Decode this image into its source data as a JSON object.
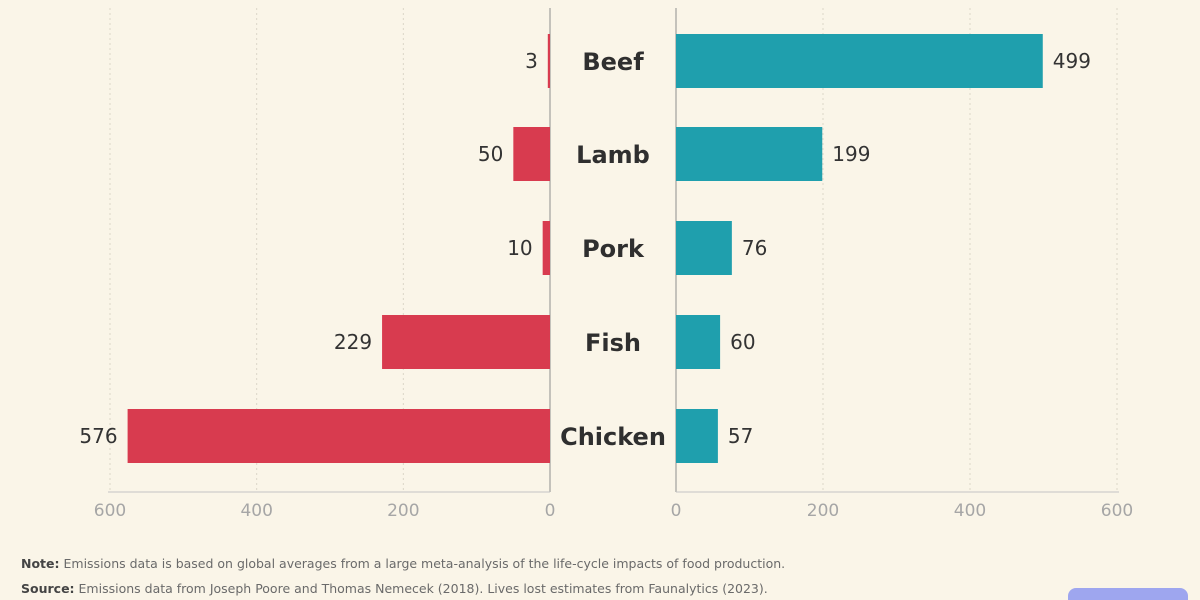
{
  "chart_data": {
    "type": "bar",
    "categories": [
      "Beef",
      "Lamb",
      "Pork",
      "Fish",
      "Chicken"
    ],
    "series": [
      {
        "values": [
          3,
          50,
          10,
          229,
          576
        ],
        "color": "#d83b4f"
      },
      {
        "values": [
          499,
          199,
          76,
          60,
          57
        ],
        "color": "#1f9fad"
      }
    ],
    "left_axis": {
      "reversed": true,
      "xlim": [
        0,
        600
      ],
      "ticks": [
        600,
        400,
        200,
        0
      ]
    },
    "right_axis": {
      "xlim": [
        0,
        600
      ],
      "ticks": [
        0,
        200,
        400,
        600
      ]
    },
    "grid": true
  },
  "footer": {
    "note_label": "Note:",
    "note_text": "Emissions data is based on global averages from a large meta-analysis of the life-cycle impacts of food production.",
    "source_label": "Source:",
    "source_text": "Emissions data from Joseph Poore and Thomas Nemecek (2018). Lives lost estimates from Faunalytics (2023)."
  }
}
